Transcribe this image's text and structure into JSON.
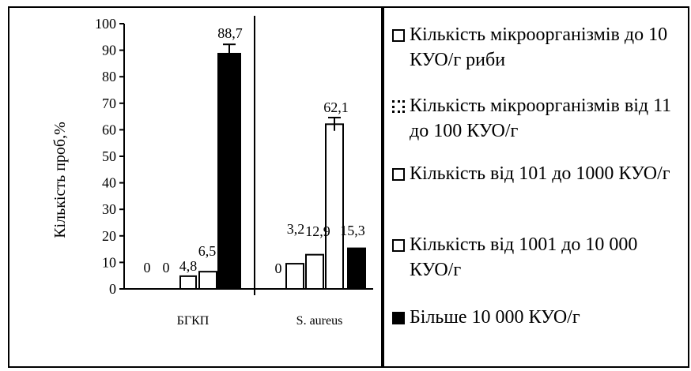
{
  "chart_data": {
    "type": "bar",
    "ylabel": "Кількість проб,%",
    "xlabel": "",
    "ylim": [
      0,
      100
    ],
    "yticks": [
      0,
      10,
      20,
      30,
      40,
      50,
      60,
      70,
      80,
      90,
      100
    ],
    "categories": [
      "БГКП",
      "S. aureus"
    ],
    "series": [
      {
        "name": "Кількість мікроорганізмів до 10  КУО/г риби",
        "fill": "#ffffff",
        "values": [
          0,
          0
        ],
        "labels": [
          "0",
          "0"
        ]
      },
      {
        "name": "Кількість мікроорганізмів від 11 до 100 КУО/г",
        "fill": "#ffffff",
        "values": [
          0,
          9.5
        ],
        "labels": [
          "0",
          ""
        ]
      },
      {
        "name": "Кількість від 101 до 1000 КУО/г",
        "fill": "#ffffff",
        "values": [
          4.8,
          12.9
        ],
        "labels": [
          "4,8",
          "12,9"
        ]
      },
      {
        "name": "Кількість від 1001 до 10 000 КУО/г",
        "fill": "#ffffff",
        "values": [
          6.5,
          62.1
        ],
        "labels": [
          "6,5",
          "62,1"
        ]
      },
      {
        "name": "Більше 10 000 КУО/г",
        "fill": "#000000",
        "values": [
          88.7,
          15.3
        ],
        "labels": [
          "88,7",
          "15,3"
        ]
      }
    ],
    "extra_labels": [
      {
        "category": "S. aureus",
        "text": "3,2"
      }
    ],
    "error_bars": [
      {
        "category": "БГКП",
        "series": 4,
        "err": 3.5
      },
      {
        "category": "S. aureus",
        "series": 3,
        "err": 2.5
      }
    ],
    "grid": false,
    "legend_position": "right"
  },
  "legend": {
    "items": [
      {
        "label": "Кількість мікроорганізмів до 10  КУО/г риби",
        "style": "white"
      },
      {
        "label": "Кількість мікроорганізмів від 11 до 100 КУО/г",
        "style": "dotted"
      },
      {
        "label": "Кількість від 101 до 1000 КУО/г",
        "style": "white"
      },
      {
        "label": "Кількість від 1001 до 10 000 КУО/г",
        "style": "white"
      },
      {
        "label": "Більше 10 000 КУО/г",
        "style": "black"
      }
    ]
  }
}
